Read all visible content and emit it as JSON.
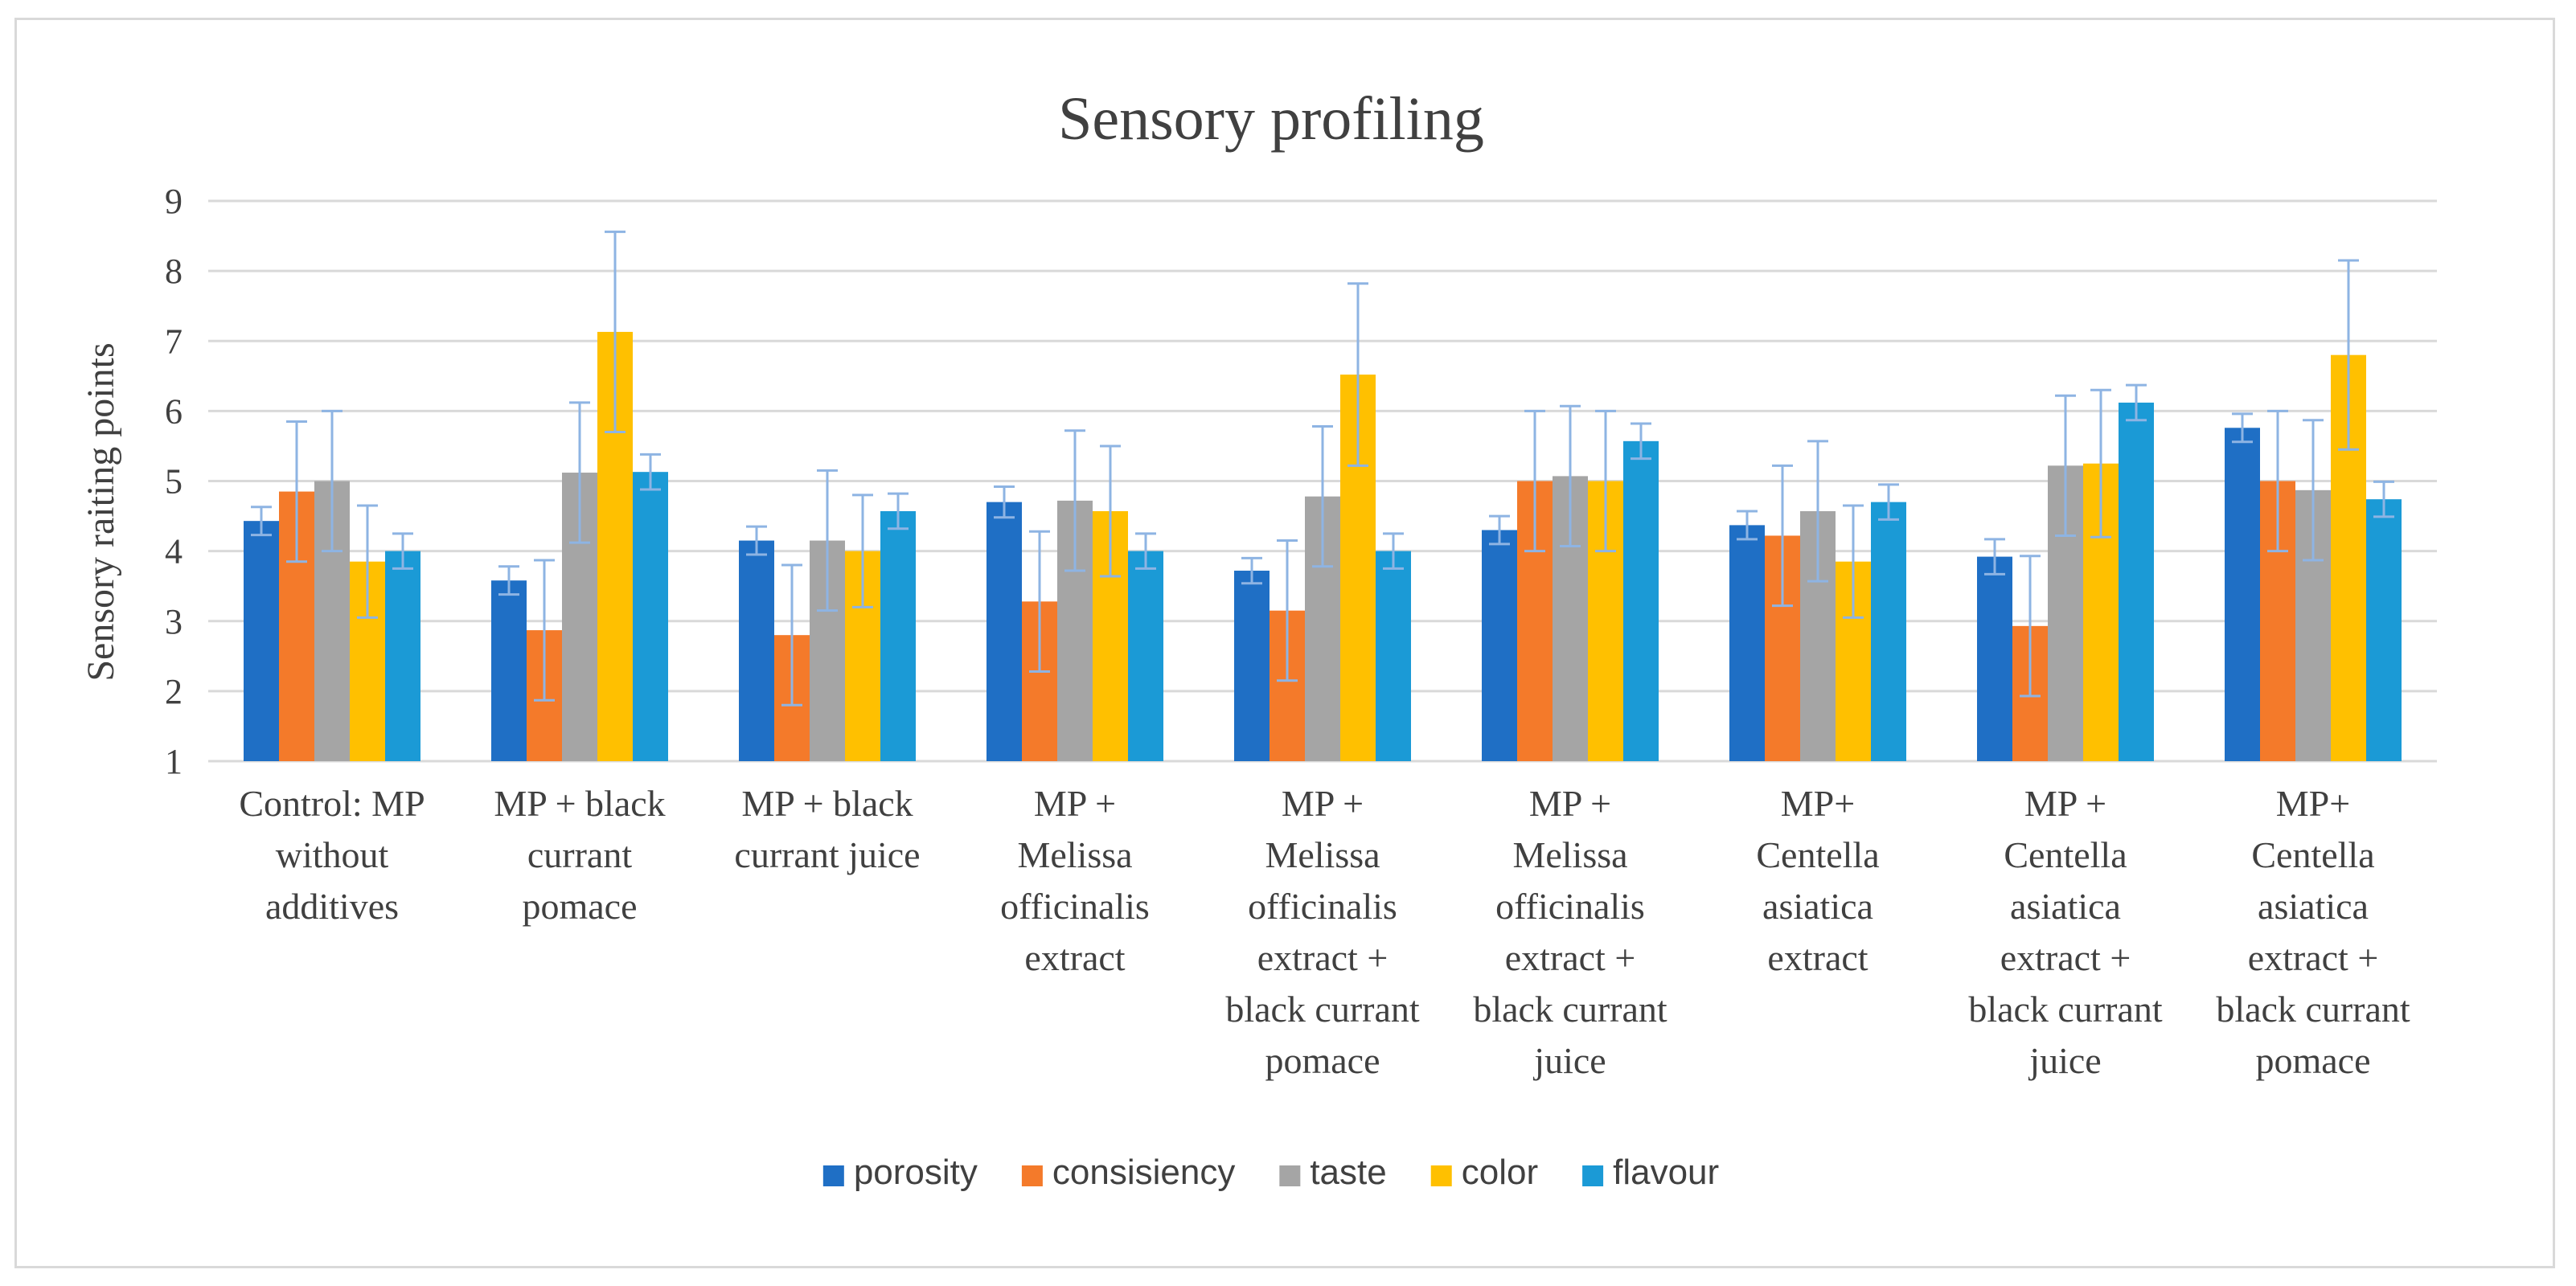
{
  "chart_data": {
    "type": "bar",
    "title": "Sensory profiling",
    "xlabel": "",
    "ylabel": "Sensory raiting points",
    "ylim": [
      1,
      9
    ],
    "yticks": [
      1,
      2,
      3,
      4,
      5,
      6,
      7,
      8,
      9
    ],
    "grid": true,
    "legend_position": "bottom",
    "categories": [
      [
        "Control: MP",
        "without",
        "additives"
      ],
      [
        "MP + black",
        "currant",
        "pomace"
      ],
      [
        "MP + black",
        "currant juice"
      ],
      [
        "MP +",
        "Melissa",
        "officinalis",
        "extract"
      ],
      [
        "MP +",
        "Melissa",
        "officinalis",
        "extract +",
        "black currant",
        "pomace"
      ],
      [
        "MP +",
        "Melissa",
        "officinalis",
        "extract +",
        "black currant",
        "juice"
      ],
      [
        "MP+",
        "Centella",
        "asiatica",
        "extract"
      ],
      [
        "MP +",
        "Centella",
        "asiatica",
        "extract +",
        "black currant",
        "juice"
      ],
      [
        "MP+",
        "Centella",
        "asiatica",
        "extract +",
        "black currant",
        "pomace"
      ]
    ],
    "series": [
      {
        "name": "porosity",
        "color": "#1f6fc5",
        "values": [
          4.43,
          3.58,
          4.15,
          4.7,
          3.72,
          4.3,
          4.37,
          3.92,
          5.76
        ],
        "errors": [
          0.2,
          0.2,
          0.2,
          0.22,
          0.18,
          0.2,
          0.2,
          0.25,
          0.2
        ]
      },
      {
        "name": "consisiency",
        "color": "#f47a2a",
        "values": [
          4.85,
          2.87,
          2.8,
          3.28,
          3.15,
          5.0,
          4.22,
          2.93,
          5.0
        ],
        "errors": [
          1.0,
          1.0,
          1.0,
          1.0,
          1.0,
          1.0,
          1.0,
          1.0,
          1.0
        ]
      },
      {
        "name": "taste",
        "color": "#a5a5a5",
        "values": [
          5.0,
          5.12,
          4.15,
          4.72,
          4.78,
          5.07,
          4.57,
          5.22,
          4.87
        ],
        "errors": [
          1.0,
          1.0,
          1.0,
          1.0,
          1.0,
          1.0,
          1.0,
          1.0,
          1.0
        ]
      },
      {
        "name": "color",
        "color": "#ffc000",
        "values": [
          3.85,
          7.13,
          4.0,
          4.57,
          6.52,
          5.0,
          3.85,
          5.25,
          6.8
        ],
        "errors": [
          0.8,
          1.43,
          0.8,
          0.93,
          1.3,
          1.0,
          0.8,
          1.05,
          1.35
        ]
      },
      {
        "name": "flavour",
        "color": "#1b9ad6",
        "values": [
          4.0,
          5.13,
          4.57,
          4.0,
          4.0,
          5.57,
          4.7,
          6.12,
          4.74
        ],
        "errors": [
          0.25,
          0.25,
          0.25,
          0.25,
          0.25,
          0.25,
          0.25,
          0.25,
          0.25
        ]
      }
    ],
    "error_bar_color": "#8eb4e3",
    "gridline_color": "#d9d9d9"
  }
}
